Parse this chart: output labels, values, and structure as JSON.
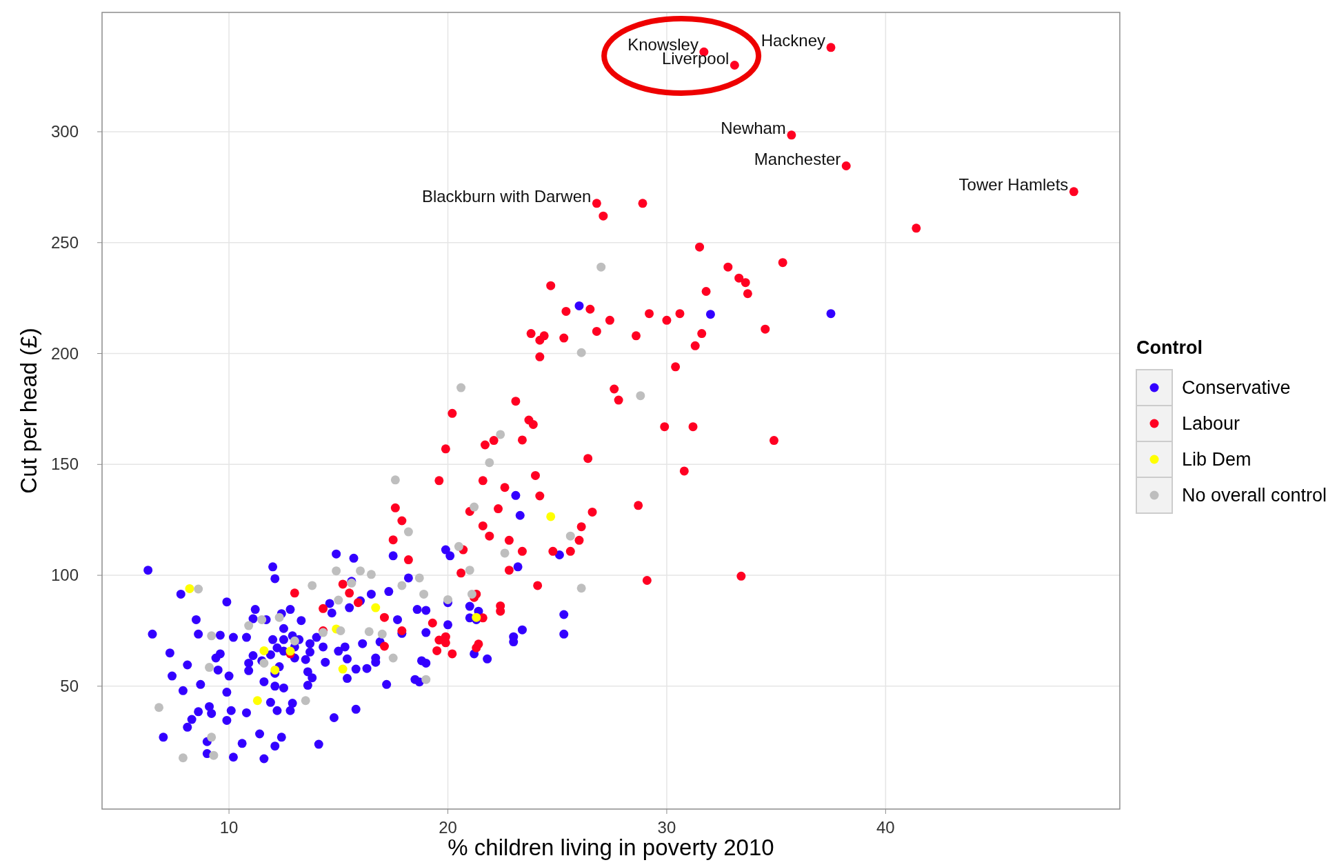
{
  "chart_data": {
    "type": "scatter",
    "xlabel": "% children living in poverty 2010",
    "ylabel": "Cut per head (£)",
    "legend_title": "Control",
    "legend": "right",
    "grid": true,
    "marker": "circle",
    "xlim": [
      4.2,
      50.7
    ],
    "xticks": [
      10,
      20,
      30,
      40
    ],
    "ylim": [
      -5.4,
      353.8
    ],
    "yticks": [
      50,
      100,
      150,
      200,
      250,
      300
    ],
    "series": [
      {
        "name": "Conservative",
        "color": "#3300ff",
        "x": [
          6.3,
          6.5,
          7.8,
          7.3,
          7.0,
          7.4,
          7.9,
          8.1,
          8.3,
          8.5,
          8.6,
          8.1,
          8.7,
          8.6,
          9.0,
          9.1,
          9.2,
          9.0,
          9.6,
          9.9,
          9.4,
          9.5,
          9.6,
          10.0,
          10.2,
          9.9,
          9.9,
          10.1,
          10.2,
          10.6,
          10.8,
          10.9,
          10.9,
          10.8,
          11.1,
          11.1,
          11.2,
          11.4,
          11.5,
          11.6,
          11.6,
          11.7,
          11.9,
          11.9,
          12.0,
          12.1,
          12.0,
          12.1,
          12.1,
          12.1,
          12.2,
          12.2,
          12.3,
          12.4,
          12.5,
          12.5,
          12.5,
          12.4,
          12.5,
          12.8,
          12.8,
          12.9,
          13.0,
          12.9,
          13.0,
          13.2,
          13.3,
          13.5,
          13.6,
          13.7,
          13.6,
          13.7,
          13.8,
          14.0,
          14.1,
          14.3,
          14.4,
          14.6,
          14.7,
          14.8,
          14.9,
          15.0,
          15.3,
          15.4,
          15.4,
          15.5,
          15.6,
          15.7,
          15.8,
          15.8,
          16.0,
          16.1,
          16.3,
          16.5,
          16.7,
          16.7,
          16.9,
          17.2,
          17.3,
          17.5,
          17.7,
          17.9,
          18.2,
          18.5,
          18.6,
          18.8,
          19.0,
          19.0,
          19.0,
          18.7,
          19.9,
          20.1,
          20.0,
          20.0,
          21.0,
          21.0,
          21.3,
          21.4,
          21.8,
          21.2,
          23.1,
          23.3,
          23.2,
          23.4,
          23.0,
          23.0,
          25.1,
          25.3,
          25.3,
          26.0,
          32.0,
          37.5
        ],
        "values": [
          102.3,
          73.5,
          91.5,
          65,
          27,
          54.6,
          48,
          31.5,
          35,
          80,
          73.5,
          59.6,
          50.8,
          38.5,
          25,
          40.8,
          37.7,
          19.6,
          73,
          88,
          62.7,
          57.3,
          64.6,
          54.6,
          72,
          47.3,
          34.6,
          39,
          18,
          24.2,
          72,
          60.4,
          57,
          38,
          80.4,
          63.8,
          84.6,
          28.5,
          61.5,
          52,
          17.3,
          80,
          64.2,
          42.7,
          103.8,
          98.5,
          71,
          55.8,
          50,
          23,
          67.3,
          39,
          58.8,
          82.7,
          76,
          71,
          65.8,
          27,
          49.2,
          84.6,
          39,
          72.7,
          67.7,
          42.3,
          62.7,
          71,
          79.6,
          62,
          56.5,
          69.2,
          50.4,
          65.4,
          53.8,
          72,
          23.8,
          67.7,
          60.8,
          87.3,
          83,
          35.8,
          109.6,
          65.8,
          67.7,
          62.3,
          53.5,
          85.4,
          97.3,
          107.7,
          39.6,
          57.7,
          88.5,
          69.2,
          58,
          91.5,
          60.8,
          62.7,
          70,
          50.8,
          92.7,
          108.8,
          80,
          73.8,
          98.8,
          53,
          84.6,
          61.5,
          60.4,
          74.2,
          84.2,
          51.9,
          111.5,
          108.8,
          87.7,
          77.7,
          86,
          80.8,
          80,
          83.8,
          62.3,
          64.6,
          136,
          127,
          103.8,
          75.4,
          72.3,
          70,
          109.2,
          82.3,
          73.5,
          221.5,
          217.7,
          218
        ]
      },
      {
        "name": "Labour",
        "color": "#ff0022",
        "x": [
          31.7,
          37.5,
          33.1,
          35.7,
          38.2,
          48.6,
          26.8,
          27.1,
          28.9,
          41.4,
          31.5,
          35.3,
          32.8,
          33.3,
          33.6,
          33.7,
          31.8,
          24.7,
          25.4,
          26.5,
          27.4,
          26.8,
          29.2,
          30.0,
          30.6,
          31.6,
          31.3,
          34.5,
          28.6,
          23.8,
          24.2,
          24.4,
          25.3,
          24.2,
          30.4,
          27.6,
          27.8,
          23.1,
          23.7,
          23.9,
          20.2,
          29.9,
          31.2,
          34.9,
          19.9,
          21.7,
          22.1,
          23.4,
          26.4,
          30.8,
          19.6,
          21.6,
          22.6,
          24.0,
          24.2,
          17.6,
          17.9,
          21.0,
          22.3,
          21.6,
          21.9,
          17.5,
          22.8,
          23.4,
          26.6,
          28.7,
          26.1,
          26.0,
          25.6,
          24.8,
          18.2,
          20.7,
          33.4,
          29.1,
          24.1,
          22.8,
          20.6,
          21.3,
          22.4,
          22.4,
          21.6,
          13.0,
          14.3,
          15.5,
          15.2,
          15.9,
          17.1,
          17.9,
          17.1,
          14.3,
          19.3,
          19.6,
          19.9,
          20.2,
          21.3,
          21.4,
          19.9,
          19.5,
          21.2,
          12.8
        ],
        "values": [
          336,
          338,
          330,
          298.5,
          284.6,
          273,
          267.7,
          262,
          267.7,
          256.5,
          248,
          241,
          239,
          234,
          232,
          227,
          228,
          230.6,
          219,
          220,
          215,
          210,
          218,
          215,
          218,
          209,
          203.5,
          211,
          208,
          209,
          206,
          208,
          207,
          198.5,
          194,
          184,
          179,
          178.5,
          170,
          168,
          173,
          167,
          167,
          160.8,
          157,
          158.8,
          160.8,
          161,
          152.7,
          147,
          142.7,
          142.7,
          139.6,
          145,
          135.8,
          130.4,
          124.6,
          128.8,
          130,
          122.3,
          117.7,
          116,
          115.8,
          110.8,
          128.5,
          131.5,
          121.9,
          115.8,
          110.8,
          110.8,
          107,
          111.5,
          99.6,
          97.7,
          95.4,
          102.3,
          101,
          91.5,
          86.2,
          83.8,
          80.8,
          92,
          85,
          92,
          96,
          87.7,
          81,
          75,
          68,
          75,
          78.5,
          70.8,
          72.3,
          64.6,
          67.3,
          69,
          69.6,
          66,
          90,
          64.6
        ]
      },
      {
        "name": "Lib Dem",
        "color": "#ffff00",
        "x": [
          8.2,
          11.6,
          12.1,
          11.3,
          12.8,
          14.9,
          15.2,
          16.7,
          21.3,
          24.7
        ],
        "values": [
          94,
          66,
          57.3,
          43.5,
          65.8,
          75.8,
          57.7,
          85.4,
          81,
          126.5
        ]
      },
      {
        "name": "No overall control",
        "color": "#bebebe",
        "x": [
          6.8,
          8.6,
          7.9,
          9.2,
          9.3,
          9.2,
          9.1,
          10.9,
          11.5,
          11.6,
          12.3,
          13.0,
          13.5,
          13.8,
          14.3,
          14.9,
          15.0,
          15.1,
          15.6,
          16.0,
          16.5,
          16.4,
          17.0,
          17.5,
          17.6,
          18.2,
          17.9,
          18.7,
          18.9,
          19.0,
          20.6,
          20.5,
          21.0,
          21.1,
          21.2,
          21.9,
          22.4,
          22.6,
          25.6,
          26.1,
          27.0,
          26.1,
          28.8,
          20.0
        ],
        "values": [
          40.4,
          93.8,
          17.7,
          27,
          18.8,
          72.7,
          58.5,
          77.3,
          80,
          60.4,
          81,
          70.4,
          43.5,
          95.4,
          74.2,
          102,
          88.8,
          75,
          96.5,
          102,
          100.4,
          74.6,
          73.5,
          62.7,
          143,
          119.6,
          95.4,
          98.8,
          91.5,
          53,
          184.6,
          113,
          102.3,
          91.5,
          130.8,
          150.8,
          163.5,
          110,
          117.7,
          94.2,
          239,
          200.4,
          181,
          89
        ]
      }
    ],
    "annotations": [
      {
        "text": "Knowsley",
        "x": 31.7,
        "y": 336
      },
      {
        "text": "Hackney",
        "x": 37.5,
        "y": 338
      },
      {
        "text": "Liverpool",
        "x": 33.1,
        "y": 330
      },
      {
        "text": "Newham",
        "x": 35.7,
        "y": 298.5
      },
      {
        "text": "Manchester",
        "x": 38.2,
        "y": 284.6
      },
      {
        "text": "Tower Hamlets",
        "x": 48.6,
        "y": 273
      },
      {
        "text": "Blackburn with Darwen",
        "x": 26.8,
        "y": 267.7
      }
    ]
  }
}
